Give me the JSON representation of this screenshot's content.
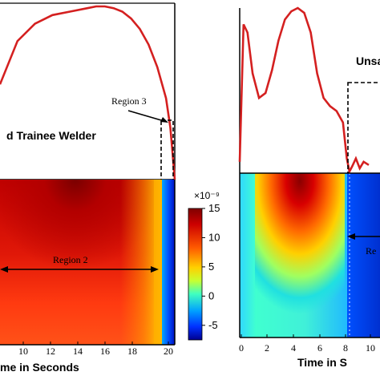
{
  "chart_data": [
    {
      "type": "line",
      "panel": "left-top",
      "annotation_title": "d Trainee Welder",
      "region3_label": "Region 3",
      "x": [
        0,
        2,
        4,
        6,
        8,
        10,
        11,
        12,
        13,
        14,
        15,
        16,
        17,
        18,
        19,
        19.5,
        20
      ],
      "y": [
        0.55,
        0.8,
        0.9,
        0.95,
        0.97,
        0.99,
        1.0,
        1.0,
        0.99,
        0.97,
        0.93,
        0.87,
        0.78,
        0.65,
        0.47,
        0.3,
        0.0
      ],
      "line_color": "#d42020",
      "ylim": [
        0,
        1
      ]
    },
    {
      "type": "heatmap",
      "panel": "left-bottom",
      "region2_label": "Region 2",
      "x_ticks": [
        "10",
        "12",
        "14",
        "16",
        "18",
        "20"
      ],
      "xlabel": "me in Seconds",
      "colorbar": {
        "exponent_label": "×10⁻⁹",
        "ticks": [
          "15",
          "10",
          "5",
          "0",
          "-5"
        ],
        "range": [
          -7.5,
          15
        ]
      }
    },
    {
      "type": "line",
      "panel": "right-top",
      "annotation_title": "Unsa",
      "x": [
        0,
        0.3,
        0.6,
        1.0,
        1.5,
        2.0,
        2.5,
        3.0,
        3.5,
        4.0,
        4.5,
        5.0,
        5.5,
        6.0,
        6.5,
        7.0,
        7.5,
        8.0,
        8.3,
        8.5,
        8.7,
        9.0,
        9.3,
        9.6,
        10.0
      ],
      "y": [
        0.06,
        0.9,
        0.85,
        0.6,
        0.45,
        0.48,
        0.62,
        0.8,
        0.93,
        0.98,
        1.0,
        0.97,
        0.85,
        0.6,
        0.45,
        0.4,
        0.37,
        0.3,
        0.08,
        0.0,
        0.03,
        0.08,
        0.02,
        0.06,
        0.04
      ],
      "line_color": "#d42020",
      "ylim": [
        0,
        1
      ]
    },
    {
      "type": "heatmap",
      "panel": "right-bottom",
      "region_label": "Re",
      "x_ticks": [
        "0",
        "2",
        "4",
        "6",
        "8",
        "10"
      ],
      "xlabel": "Time in S"
    }
  ]
}
